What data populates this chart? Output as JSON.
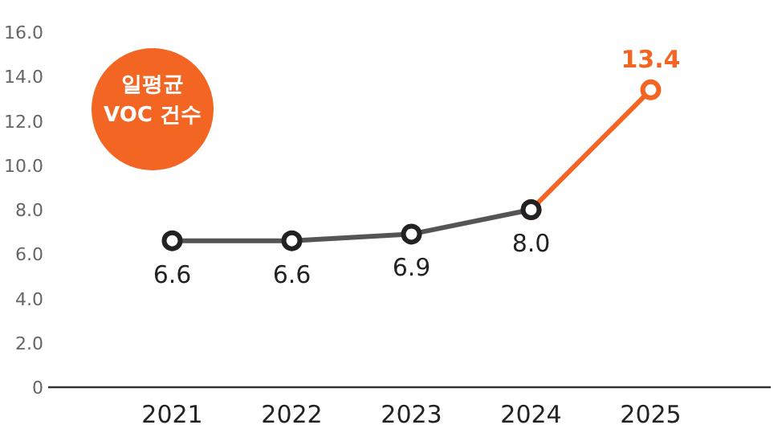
{
  "chart_data": {
    "type": "line",
    "categories": [
      "2021",
      "2022",
      "2023",
      "2024",
      "2025"
    ],
    "series": [
      {
        "color": "#f26522",
        "values": [
          null,
          null,
          null,
          8.0,
          13.4
        ],
        "value_labels": [
          null,
          null,
          null,
          null,
          "13.4"
        ]
      },
      {
        "color": "#555555",
        "values": [
          6.6,
          6.6,
          6.9,
          8.0,
          null
        ],
        "value_labels": [
          "6.6",
          "6.6",
          "6.9",
          "8.0",
          null
        ]
      }
    ],
    "ylim": [
      0,
      16
    ],
    "yticks": [
      0,
      {
        "value": 2,
        "label": "2.0"
      },
      {
        "value": 4,
        "label": "4.0"
      },
      {
        "value": 6,
        "label": "6.0"
      },
      {
        "value": 8,
        "label": "8.0"
      },
      {
        "value": 10,
        "label": "10.0"
      },
      {
        "value": 12,
        "label": "12.0"
      },
      {
        "value": 14,
        "label": "14.0"
      },
      {
        "value": 16,
        "label": "16.0"
      }
    ],
    "marker": "circle",
    "line_style": "solid",
    "annotations": [
      "일평균\nVOC 건수"
    ]
  }
}
